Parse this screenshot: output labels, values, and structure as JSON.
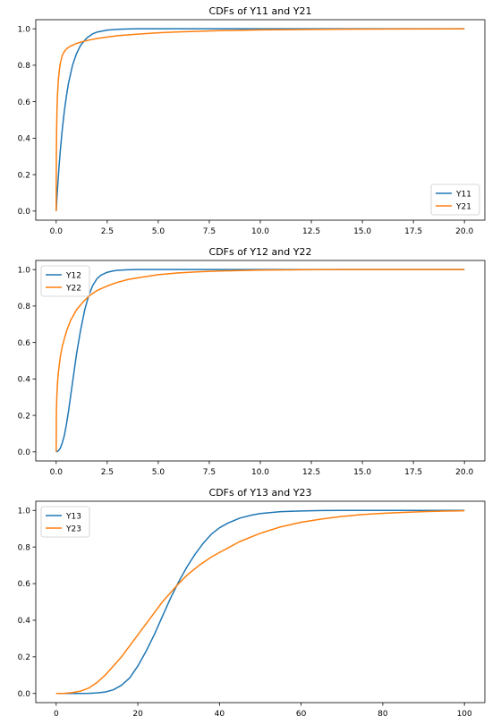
{
  "chart_data": [
    {
      "type": "line",
      "title": "CDFs of Y11 and Y21",
      "xlabel": "",
      "ylabel": "",
      "xlim": [
        -1,
        21
      ],
      "ylim": [
        -0.05,
        1.05
      ],
      "xticks": [
        0.0,
        2.5,
        5.0,
        7.5,
        10.0,
        12.5,
        15.0,
        17.5,
        20.0
      ],
      "xtick_labels": [
        "0.0",
        "2.5",
        "5.0",
        "7.5",
        "10.0",
        "12.5",
        "15.0",
        "17.5",
        "20.0"
      ],
      "yticks": [
        0.0,
        0.2,
        0.4,
        0.6,
        0.8,
        1.0
      ],
      "ytick_labels": [
        "0.0",
        "0.2",
        "0.4",
        "0.6",
        "0.8",
        "1.0"
      ],
      "grid": false,
      "legend": "lower-right",
      "series": [
        {
          "name": "Y11",
          "color": "#1f77b4",
          "x": [
            0,
            0.02,
            0.05,
            0.1,
            0.15,
            0.2,
            0.3,
            0.4,
            0.5,
            0.6,
            0.8,
            1.0,
            1.2,
            1.5,
            1.8,
            2.0,
            2.5,
            3.0,
            3.5,
            4.0,
            5.0,
            6.0,
            8.0,
            10.0,
            12.0,
            15.0,
            20.0
          ],
          "y": [
            0,
            0.04,
            0.1,
            0.18,
            0.26,
            0.33,
            0.45,
            0.55,
            0.63,
            0.7,
            0.8,
            0.865,
            0.91,
            0.95,
            0.973,
            0.982,
            0.993,
            0.997,
            0.999,
            1.0,
            1.0,
            1.0,
            1.0,
            1.0,
            1.0,
            1.0,
            1.0
          ]
        },
        {
          "name": "Y21",
          "color": "#ff7f0e",
          "x": [
            0,
            0.002,
            0.005,
            0.01,
            0.02,
            0.04,
            0.06,
            0.1,
            0.15,
            0.2,
            0.3,
            0.4,
            0.5,
            0.7,
            1.0,
            1.3,
            1.6,
            2.0,
            2.5,
            3.0,
            4.0,
            5.0,
            6.0,
            8.0,
            10.0,
            12.0,
            14.0,
            17.0,
            20.0
          ],
          "y": [
            0,
            0.15,
            0.24,
            0.33,
            0.44,
            0.56,
            0.63,
            0.71,
            0.77,
            0.81,
            0.855,
            0.875,
            0.89,
            0.905,
            0.92,
            0.93,
            0.938,
            0.947,
            0.955,
            0.962,
            0.971,
            0.978,
            0.983,
            0.99,
            0.994,
            0.996,
            0.998,
            0.999,
            1.0
          ]
        }
      ]
    },
    {
      "type": "line",
      "title": "CDFs of Y12 and Y22",
      "xlabel": "",
      "ylabel": "",
      "xlim": [
        -1,
        21
      ],
      "ylim": [
        -0.05,
        1.05
      ],
      "xticks": [
        0.0,
        2.5,
        5.0,
        7.5,
        10.0,
        12.5,
        15.0,
        17.5,
        20.0
      ],
      "xtick_labels": [
        "0.0",
        "2.5",
        "5.0",
        "7.5",
        "10.0",
        "12.5",
        "15.0",
        "17.5",
        "20.0"
      ],
      "yticks": [
        0.0,
        0.2,
        0.4,
        0.6,
        0.8,
        1.0
      ],
      "ytick_labels": [
        "0.0",
        "0.2",
        "0.4",
        "0.6",
        "0.8",
        "1.0"
      ],
      "grid": false,
      "legend": "upper-left",
      "series": [
        {
          "name": "Y12",
          "color": "#1f77b4",
          "x": [
            0,
            0.1,
            0.2,
            0.3,
            0.4,
            0.5,
            0.6,
            0.8,
            1.0,
            1.2,
            1.4,
            1.6,
            1.8,
            2.0,
            2.2,
            2.5,
            2.8,
            3.0,
            3.5,
            4.0,
            5.0,
            6.0,
            8.0,
            10.0,
            15.0,
            20.0
          ],
          "y": [
            0,
            0.005,
            0.02,
            0.05,
            0.09,
            0.15,
            0.22,
            0.38,
            0.54,
            0.67,
            0.78,
            0.86,
            0.915,
            0.95,
            0.97,
            0.985,
            0.993,
            0.996,
            0.999,
            1.0,
            1.0,
            1.0,
            1.0,
            1.0,
            1.0,
            1.0
          ]
        },
        {
          "name": "Y22",
          "color": "#ff7f0e",
          "x": [
            0,
            0.01,
            0.03,
            0.06,
            0.1,
            0.2,
            0.3,
            0.5,
            0.7,
            1.0,
            1.3,
            1.6,
            2.0,
            2.5,
            3.0,
            3.5,
            4.0,
            5.0,
            6.0,
            7.0,
            8.0,
            9.0,
            10.0,
            12.0,
            14.0,
            17.0,
            20.0
          ],
          "y": [
            0,
            0.22,
            0.3,
            0.37,
            0.43,
            0.52,
            0.58,
            0.66,
            0.72,
            0.78,
            0.82,
            0.855,
            0.885,
            0.91,
            0.93,
            0.945,
            0.955,
            0.972,
            0.982,
            0.988,
            0.992,
            0.995,
            0.997,
            0.999,
            1.0,
            1.0,
            1.0
          ]
        }
      ]
    },
    {
      "type": "line",
      "title": "CDFs of Y13 and Y23",
      "xlabel": "",
      "ylabel": "",
      "xlim": [
        -5,
        105
      ],
      "ylim": [
        -0.05,
        1.05
      ],
      "xticks": [
        0,
        20,
        40,
        60,
        80,
        100
      ],
      "xtick_labels": [
        "0",
        "20",
        "40",
        "60",
        "80",
        "100"
      ],
      "yticks": [
        0.0,
        0.2,
        0.4,
        0.6,
        0.8,
        1.0
      ],
      "ytick_labels": [
        "0.0",
        "0.2",
        "0.4",
        "0.6",
        "0.8",
        "1.0"
      ],
      "grid": false,
      "legend": "upper-left",
      "series": [
        {
          "name": "Y13",
          "color": "#1f77b4",
          "x": [
            0,
            5,
            8,
            10,
            12,
            14,
            16,
            18,
            20,
            22,
            24,
            26,
            28,
            30,
            32,
            34,
            36,
            38,
            40,
            42,
            45,
            48,
            50,
            55,
            60,
            65,
            70,
            80,
            90,
            100
          ],
          "y": [
            0,
            0,
            0.001,
            0.003,
            0.008,
            0.02,
            0.045,
            0.085,
            0.15,
            0.23,
            0.32,
            0.42,
            0.52,
            0.61,
            0.69,
            0.76,
            0.82,
            0.87,
            0.905,
            0.93,
            0.958,
            0.975,
            0.983,
            0.993,
            0.997,
            0.999,
            1.0,
            1.0,
            1.0,
            1.0
          ]
        },
        {
          "name": "Y23",
          "color": "#ff7f0e",
          "x": [
            0,
            2,
            4,
            6,
            8,
            10,
            12,
            14,
            16,
            18,
            20,
            22,
            24,
            26,
            28,
            30,
            32,
            35,
            38,
            40,
            45,
            50,
            55,
            60,
            65,
            70,
            75,
            80,
            85,
            90,
            95,
            100
          ],
          "y": [
            0,
            0.001,
            0.005,
            0.013,
            0.03,
            0.06,
            0.1,
            0.15,
            0.2,
            0.26,
            0.32,
            0.38,
            0.44,
            0.5,
            0.55,
            0.6,
            0.645,
            0.7,
            0.745,
            0.77,
            0.83,
            0.875,
            0.91,
            0.935,
            0.953,
            0.967,
            0.977,
            0.984,
            0.989,
            0.993,
            0.996,
            0.998
          ]
        }
      ]
    }
  ]
}
